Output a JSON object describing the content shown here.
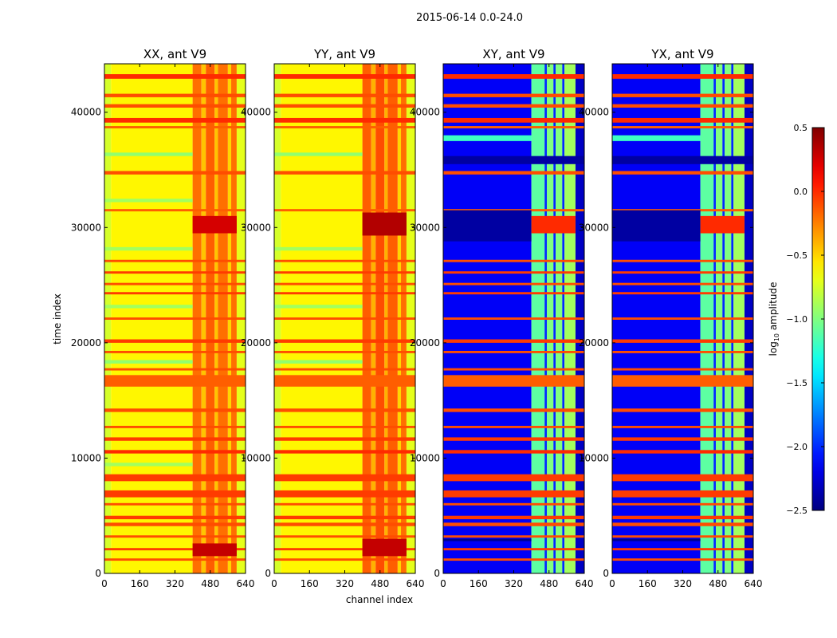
{
  "chart_data": {
    "type": "heatmap",
    "title": "2015-06-14 0.0-24.0",
    "xlabel": "channel index",
    "ylabel": "time index",
    "xlim": [
      0,
      640
    ],
    "ylim": [
      0,
      44200
    ],
    "xticks": [
      "0",
      "160",
      "320",
      "480",
      "640"
    ],
    "xtick_values": [
      0,
      160,
      320,
      480,
      640
    ],
    "yticks": [
      "0",
      "10000",
      "20000",
      "30000",
      "40000"
    ],
    "ytick_values": [
      0,
      10000,
      20000,
      30000,
      40000
    ],
    "colorbar": {
      "label": "log",
      "label_sub": "10",
      "label_suffix": " amplitude",
      "range": [
        -2.5,
        0.5
      ],
      "colormap": "jet",
      "ticks": [
        "0.5",
        "0.0",
        "−0.5",
        "−1.0",
        "−1.5",
        "−2.0",
        "−2.5"
      ],
      "tick_values": [
        0.5,
        0.0,
        -0.5,
        -1.0,
        -1.5,
        -2.0,
        -2.5
      ]
    },
    "common_bands": [
      {
        "t": [
          42900,
          43300
        ],
        "v": 0.0
      },
      {
        "t": [
          41300,
          41600
        ],
        "v": -0.1
      },
      {
        "t": [
          40400,
          40700
        ],
        "v": -0.1
      },
      {
        "t": [
          39100,
          39500
        ],
        "v": 0.0
      },
      {
        "t": [
          38600,
          38800
        ],
        "v": -0.15
      },
      {
        "t": [
          34600,
          34900
        ],
        "v": -0.1
      },
      {
        "t": [
          31400,
          31600
        ],
        "v": -0.15
      },
      {
        "t": [
          27000,
          27200
        ],
        "v": -0.1
      },
      {
        "t": [
          26000,
          26200
        ],
        "v": -0.05
      },
      {
        "t": [
          25000,
          25200
        ],
        "v": -0.1
      },
      {
        "t": [
          24200,
          24400
        ],
        "v": -0.05
      },
      {
        "t": [
          22000,
          22200
        ],
        "v": -0.1
      },
      {
        "t": [
          20000,
          20300
        ],
        "v": -0.05
      },
      {
        "t": [
          19100,
          19300
        ],
        "v": -0.1
      },
      {
        "t": [
          17600,
          17800
        ],
        "v": -0.1
      },
      {
        "t": [
          16200,
          17200
        ],
        "v": -0.15
      },
      {
        "t": [
          14000,
          14300
        ],
        "v": -0.1
      },
      {
        "t": [
          12600,
          12800
        ],
        "v": -0.1
      },
      {
        "t": [
          11500,
          11800
        ],
        "v": -0.05
      },
      {
        "t": [
          10400,
          10700
        ],
        "v": 0.0
      },
      {
        "t": [
          8000,
          8600
        ],
        "v": -0.05
      },
      {
        "t": [
          6600,
          7200
        ],
        "v": -0.05
      },
      {
        "t": [
          5900,
          6100
        ],
        "v": -0.1
      },
      {
        "t": [
          4700,
          5000
        ],
        "v": -0.05
      },
      {
        "t": [
          4100,
          4400
        ],
        "v": -0.1
      },
      {
        "t": [
          3100,
          3300
        ],
        "v": -0.1
      },
      {
        "t": [
          2000,
          2200
        ],
        "v": -0.05
      },
      {
        "t": [
          1100,
          1300
        ],
        "v": -0.1
      }
    ],
    "panels": [
      {
        "title": "XX, ant V9",
        "segments": [
          [
            0,
            30,
            -0.75
          ],
          [
            30,
            400,
            -0.6
          ],
          [
            400,
            440,
            -0.2
          ],
          [
            440,
            460,
            -0.45
          ],
          [
            460,
            500,
            -0.15
          ],
          [
            500,
            515,
            -0.45
          ],
          [
            515,
            560,
            -0.2
          ],
          [
            560,
            575,
            -0.5
          ],
          [
            575,
            600,
            -0.2
          ],
          [
            600,
            640,
            -0.7
          ]
        ],
        "bands": [
          {
            "t": [
              36200,
              36500
            ],
            "v": -0.95,
            "ch": [
              0,
              400
            ]
          },
          {
            "t": [
              32200,
              32500
            ],
            "v": -0.9,
            "ch": [
              0,
              400
            ]
          },
          {
            "t": [
              28000,
              28300
            ],
            "v": -0.9,
            "ch": [
              0,
              400
            ]
          },
          {
            "t": [
              23000,
              23300
            ],
            "v": -0.9,
            "ch": [
              0,
              400
            ]
          },
          {
            "t": [
              18200,
              18500
            ],
            "v": -0.95,
            "ch": [
              0,
              400
            ]
          },
          {
            "t": [
              9300,
              9600
            ],
            "v": -0.9,
            "ch": [
              0,
              400
            ]
          },
          {
            "t": [
              29500,
              31000
            ],
            "v": 0.25,
            "ch": [
              400,
              600
            ]
          },
          {
            "t": [
              1500,
              2600
            ],
            "v": 0.3,
            "ch": [
              400,
              600
            ]
          }
        ]
      },
      {
        "title": "YY, ant V9",
        "segments": [
          [
            0,
            30,
            -0.75
          ],
          [
            30,
            400,
            -0.6
          ],
          [
            400,
            440,
            -0.15
          ],
          [
            440,
            460,
            -0.4
          ],
          [
            460,
            500,
            -0.1
          ],
          [
            500,
            515,
            -0.4
          ],
          [
            515,
            560,
            -0.15
          ],
          [
            560,
            575,
            -0.5
          ],
          [
            575,
            600,
            -0.2
          ],
          [
            600,
            640,
            -0.7
          ]
        ],
        "bands": [
          {
            "t": [
              36200,
              36500
            ],
            "v": -0.95,
            "ch": [
              0,
              400
            ]
          },
          {
            "t": [
              28000,
              28300
            ],
            "v": -0.9,
            "ch": [
              0,
              400
            ]
          },
          {
            "t": [
              23000,
              23300
            ],
            "v": -0.9,
            "ch": [
              0,
              400
            ]
          },
          {
            "t": [
              18200,
              18500
            ],
            "v": -0.95,
            "ch": [
              0,
              400
            ]
          },
          {
            "t": [
              29300,
              31300
            ],
            "v": 0.35,
            "ch": [
              400,
              600
            ]
          },
          {
            "t": [
              1500,
              3000
            ],
            "v": 0.3,
            "ch": [
              400,
              600
            ]
          }
        ]
      },
      {
        "title": "XY, ant V9",
        "segments": [
          [
            0,
            400,
            -2.15
          ],
          [
            400,
            460,
            -1.1
          ],
          [
            460,
            470,
            -2.0
          ],
          [
            470,
            500,
            -1.0
          ],
          [
            500,
            510,
            -2.0
          ],
          [
            510,
            540,
            -1.0
          ],
          [
            540,
            550,
            -2.0
          ],
          [
            550,
            600,
            -0.9
          ],
          [
            600,
            640,
            -2.3
          ]
        ],
        "bands": [
          {
            "t": [
              28800,
              31500
            ],
            "v": -2.4,
            "ch": [
              0,
              400
            ]
          },
          {
            "t": [
              29500,
              31000
            ],
            "v": 0.0,
            "ch": [
              400,
              600
            ]
          },
          {
            "t": [
              37500,
              38000
            ],
            "v": -1.2,
            "ch": [
              0,
              400
            ]
          },
          {
            "t": [
              35500,
              36200
            ],
            "v": -2.4,
            "ch": [
              0,
              640
            ]
          },
          {
            "t": [
              2800,
              3000
            ],
            "v": -2.45,
            "ch": [
              0,
              400
            ]
          }
        ]
      },
      {
        "title": "YX, ant V9",
        "segments": [
          [
            0,
            400,
            -2.15
          ],
          [
            400,
            460,
            -1.1
          ],
          [
            460,
            470,
            -2.0
          ],
          [
            470,
            500,
            -1.0
          ],
          [
            500,
            510,
            -2.0
          ],
          [
            510,
            540,
            -1.0
          ],
          [
            540,
            550,
            -2.0
          ],
          [
            550,
            600,
            -0.9
          ],
          [
            600,
            640,
            -2.3
          ]
        ],
        "bands": [
          {
            "t": [
              28800,
              31500
            ],
            "v": -2.4,
            "ch": [
              0,
              400
            ]
          },
          {
            "t": [
              29500,
              31000
            ],
            "v": 0.0,
            "ch": [
              400,
              600
            ]
          },
          {
            "t": [
              37500,
              38000
            ],
            "v": -1.2,
            "ch": [
              0,
              400
            ]
          },
          {
            "t": [
              35500,
              36200
            ],
            "v": -2.4,
            "ch": [
              0,
              640
            ]
          },
          {
            "t": [
              2800,
              3000
            ],
            "v": -2.45,
            "ch": [
              0,
              400
            ]
          }
        ]
      }
    ]
  }
}
